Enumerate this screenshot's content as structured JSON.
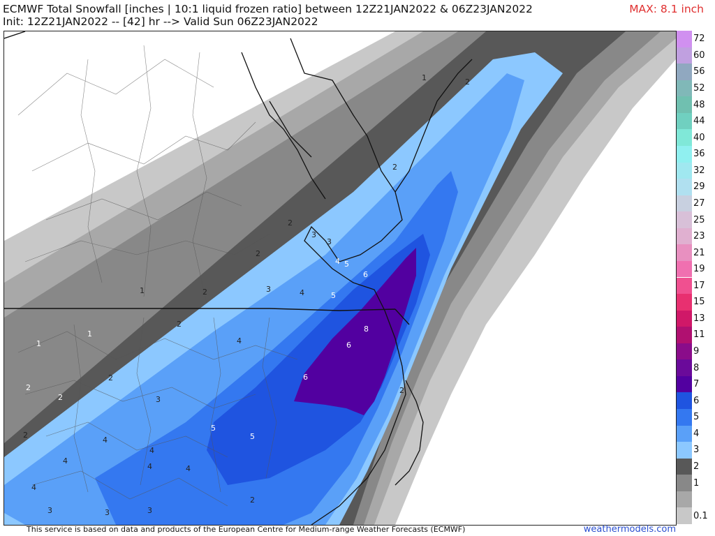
{
  "header": {
    "title_line1": "ECMWF Total Snowfall [inches | 10:1 liquid frozen ratio] between 12Z21JAN2022 & 06Z23JAN2022",
    "title_line2": "Init: 12Z21JAN2022 -- [42] hr --> Valid Sun 06Z23JAN2022",
    "max_label": "MAX: 8.1 inch"
  },
  "legend": {
    "items": [
      {
        "label": "72",
        "color": "#d090f0"
      },
      {
        "label": "60",
        "color": "#c0a0e0"
      },
      {
        "label": "56",
        "color": "#90a8c0"
      },
      {
        "label": "52",
        "color": "#80b8b8"
      },
      {
        "label": "48",
        "color": "#70c0b0"
      },
      {
        "label": "44",
        "color": "#70d0c0"
      },
      {
        "label": "40",
        "color": "#80e8d8"
      },
      {
        "label": "36",
        "color": "#90f0f0"
      },
      {
        "label": "32",
        "color": "#a0e8f0"
      },
      {
        "label": "29",
        "color": "#b0e0f0"
      },
      {
        "label": "27",
        "color": "#c8d0e0"
      },
      {
        "label": "25",
        "color": "#d8c0d8"
      },
      {
        "label": "23",
        "color": "#e0b0d0"
      },
      {
        "label": "21",
        "color": "#e890c0"
      },
      {
        "label": "19",
        "color": "#f070b0"
      },
      {
        "label": "17",
        "color": "#f05090"
      },
      {
        "label": "15",
        "color": "#e83070"
      },
      {
        "label": "13",
        "color": "#d01868"
      },
      {
        "label": "11",
        "color": "#b01070"
      },
      {
        "label": "9",
        "color": "#8a0c8a"
      },
      {
        "label": "8",
        "color": "#6a0a9a"
      },
      {
        "label": "7",
        "color": "#5200a0"
      },
      {
        "label": "6",
        "color": "#1f54e0"
      },
      {
        "label": "5",
        "color": "#3478f0"
      },
      {
        "label": "4",
        "color": "#5aa0f8"
      },
      {
        "label": "3",
        "color": "#8cc8ff"
      },
      {
        "label": "2",
        "color": "#585858"
      },
      {
        "label": "1",
        "color": "#888888"
      },
      {
        "label": "",
        "color": "#a8a8a8"
      },
      {
        "label": "0.1",
        "color": "#c8c8c8"
      }
    ]
  },
  "map": {
    "contour_labels": [
      {
        "text": "1"
      },
      {
        "text": "2"
      },
      {
        "text": "2"
      },
      {
        "text": "2"
      },
      {
        "text": "2"
      },
      {
        "text": "3"
      },
      {
        "text": "3"
      },
      {
        "text": "4"
      },
      {
        "text": "5"
      },
      {
        "text": "6"
      },
      {
        "text": "5"
      },
      {
        "text": "4"
      },
      {
        "text": "3"
      },
      {
        "text": "2"
      },
      {
        "text": "1"
      },
      {
        "text": "2"
      },
      {
        "text": "8"
      },
      {
        "text": "6"
      },
      {
        "text": "6"
      },
      {
        "text": "4"
      },
      {
        "text": "1"
      },
      {
        "text": "1"
      },
      {
        "text": "2"
      },
      {
        "text": "2"
      },
      {
        "text": "2"
      },
      {
        "text": "3"
      },
      {
        "text": "5"
      },
      {
        "text": "5"
      },
      {
        "text": "2"
      },
      {
        "text": "4"
      },
      {
        "text": "4"
      },
      {
        "text": "4"
      },
      {
        "text": "4"
      },
      {
        "text": "4"
      },
      {
        "text": "4"
      },
      {
        "text": "3"
      },
      {
        "text": "3"
      },
      {
        "text": "3"
      },
      {
        "text": "2"
      },
      {
        "text": "2"
      }
    ]
  },
  "footer": {
    "credit": "This service is based on data and products of the European Centre for Medium-range Weather Forecasts (ECMWF)",
    "site": "weathermodels.com"
  }
}
